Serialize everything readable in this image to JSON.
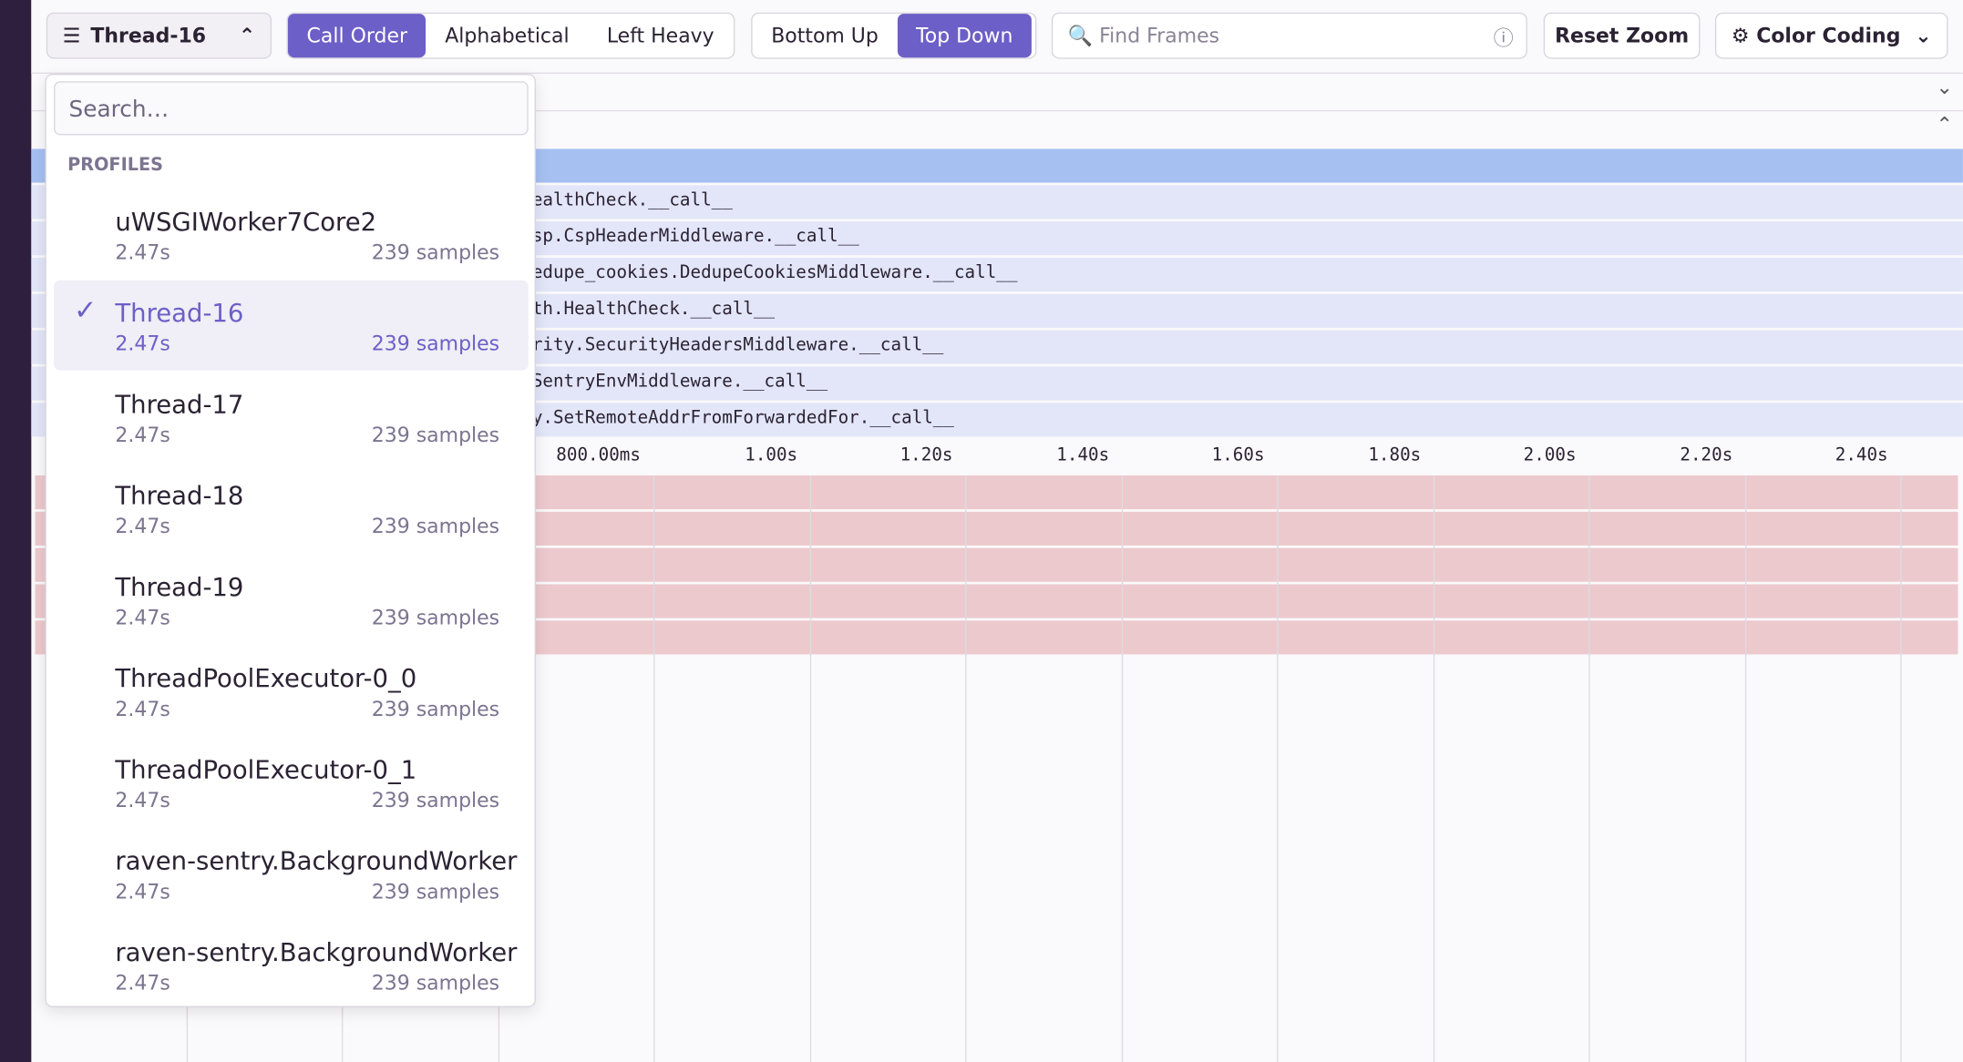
{
  "toolbar": {
    "thread_selector": "Thread-16",
    "sort_options": [
      "Call Order",
      "Alphabetical",
      "Left Heavy"
    ],
    "direction_options": [
      "Bottom Up",
      "Top Down"
    ],
    "find_placeholder": "Find Frames",
    "reset_zoom": "Reset Zoom",
    "color_coding": "Color Coding"
  },
  "dropdown": {
    "search_placeholder": "Search…",
    "section": "PROFILES",
    "items": [
      {
        "name": "uWSGIWorker7Core2",
        "duration": "2.47s",
        "samples": "239 samples"
      },
      {
        "name": "Thread-16",
        "duration": "2.47s",
        "samples": "239 samples"
      },
      {
        "name": "Thread-17",
        "duration": "2.47s",
        "samples": "239 samples"
      },
      {
        "name": "Thread-18",
        "duration": "2.47s",
        "samples": "239 samples"
      },
      {
        "name": "Thread-19",
        "duration": "2.47s",
        "samples": "239 samples"
      },
      {
        "name": "ThreadPoolExecutor-0_0",
        "duration": "2.47s",
        "samples": "239 samples"
      },
      {
        "name": "ThreadPoolExecutor-0_1",
        "duration": "2.47s",
        "samples": "239 samples"
      },
      {
        "name": "raven-sentry.BackgroundWorker",
        "duration": "2.47s",
        "samples": "239 samples"
      },
      {
        "name": "raven-sentry.BackgroundWorker",
        "duration": "2.47s",
        "samples": "239 samples"
      }
    ]
  },
  "flamegraph": {
    "frames": [
      "ealthCheck.__call__",
      "sp.CspHeaderMiddleware.__call__",
      "edupe_cookies.DedupeCookiesMiddleware.__call__",
      "th.HealthCheck.__call__",
      "rity.SecurityHeadersMiddleware.__call__",
      "SentryEnvMiddleware.__call__",
      "y.SetRemoteAddrFromForwardedFor.__call__"
    ],
    "ticks": [
      "800.00ms",
      "1.00s",
      "1.20s",
      "1.40s",
      "1.60s",
      "1.80s",
      "2.00s",
      "2.20s",
      "2.40s"
    ]
  }
}
